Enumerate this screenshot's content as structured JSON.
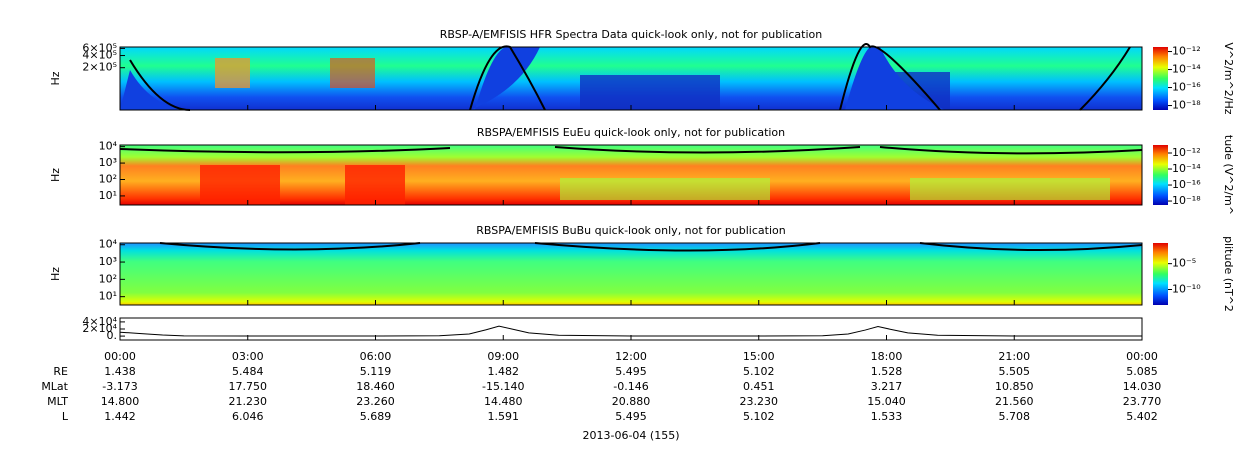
{
  "chart_data": [
    {
      "type": "spectrogram",
      "title": "RBSP-A/EMFISIS  HFR Spectra Data quick-look only, not for publication",
      "ylabel": "Hz",
      "ylog": true,
      "ylim": [
        18000,
        650000
      ],
      "yticks": [
        {
          "value": 200000,
          "label": "2×10⁵"
        },
        {
          "value": 400000,
          "label": "4×10⁵"
        },
        {
          "value": 600000,
          "label": "6×10⁵"
        }
      ],
      "colorbar_label": "V^2/m^2/Hz",
      "clim": [
        3.2e-19,
        3.2e-12
      ],
      "cticks": [
        {
          "value": 1e-18,
          "label": "10⁻¹⁸"
        },
        {
          "value": 1e-16,
          "label": "10⁻¹⁶"
        },
        {
          "value": 1e-14,
          "label": "10⁻¹⁴"
        },
        {
          "value": 1e-12,
          "label": "10⁻¹²"
        }
      ]
    },
    {
      "type": "spectrogram",
      "title": "RBSPA/EMFISIS  EuEu quick-look only, not for publication",
      "ylabel": "Hz",
      "ylog": true,
      "ylim": [
        2.8,
        12600
      ],
      "yticks": [
        {
          "value": 10,
          "label": "10¹"
        },
        {
          "value": 100,
          "label": "10²"
        },
        {
          "value": 1000,
          "label": "10³"
        },
        {
          "value": 10000,
          "label": "10⁴"
        }
      ],
      "colorbar_label": "tude (V^2/m^",
      "clim": [
        3.2e-19,
        1e-11
      ],
      "cticks": [
        {
          "value": 1e-18,
          "label": "10⁻¹⁸"
        },
        {
          "value": 1e-16,
          "label": "10⁻¹⁶"
        },
        {
          "value": 1e-14,
          "label": "10⁻¹⁴"
        },
        {
          "value": 1e-12,
          "label": "10⁻¹²"
        }
      ]
    },
    {
      "type": "spectrogram",
      "title": "RBSPA/EMFISIS  BuBu quick-look only, not for publication",
      "ylabel": "Hz",
      "ylog": true,
      "ylim": [
        3.3,
        12600
      ],
      "yticks": [
        {
          "value": 10,
          "label": "10¹"
        },
        {
          "value": 100,
          "label": "10²"
        },
        {
          "value": 1000,
          "label": "10³"
        },
        {
          "value": 10000,
          "label": "10⁴"
        }
      ],
      "colorbar_label": "plitude (nT^2",
      "clim": [
        1e-13,
        0.1
      ],
      "cticks": [
        {
          "value": 1e-10,
          "label": "10⁻¹⁰"
        },
        {
          "value": 1e-05,
          "label": "10⁻⁵"
        }
      ]
    },
    {
      "type": "line",
      "ylim": [
        -11000,
        51000
      ],
      "yticks": [
        {
          "value": 0,
          "label": "0."
        },
        {
          "value": 20000,
          "label": "2×10⁴"
        },
        {
          "value": 40000,
          "label": "4×10⁴"
        }
      ],
      "xlim": [
        0,
        24
      ],
      "xticks": [
        {
          "value": 0,
          "label": "00:00"
        },
        {
          "value": 3,
          "label": "03:00"
        },
        {
          "value": 6,
          "label": "06:00"
        },
        {
          "value": 9,
          "label": "09:00"
        },
        {
          "value": 12,
          "label": "12:00"
        },
        {
          "value": 15,
          "label": "15:00"
        },
        {
          "value": 18,
          "label": "18:00"
        },
        {
          "value": 21,
          "label": "21:00"
        },
        {
          "value": 24,
          "label": "00:00"
        }
      ],
      "x": [
        0,
        0.5,
        1,
        1.5,
        3,
        6,
        7.5,
        8.2,
        8.6,
        8.9,
        9.2,
        9.6,
        10.3,
        12,
        15,
        16.5,
        17.1,
        17.5,
        17.8,
        18.1,
        18.5,
        19.2,
        21,
        24
      ],
      "values": [
        11000,
        7000,
        3000,
        800,
        200,
        200,
        1000,
        6000,
        18000,
        28000,
        20000,
        9000,
        2500,
        200,
        200,
        1000,
        6000,
        17000,
        27000,
        19000,
        9000,
        2500,
        200,
        200
      ],
      "color": "#000000",
      "xlabel": "2013-06-04 (155)"
    }
  ],
  "ephemeris": {
    "rows": [
      {
        "label": "RE",
        "values": [
          "1.438",
          "5.484",
          "5.119",
          "1.482",
          "5.495",
          "5.102",
          "1.528",
          "5.505",
          "5.085"
        ]
      },
      {
        "label": "MLat",
        "values": [
          "-3.173",
          "17.750",
          "18.460",
          "-15.140",
          "-0.146",
          "0.451",
          "3.217",
          "10.850",
          "14.030"
        ]
      },
      {
        "label": "MLT",
        "values": [
          "14.800",
          "21.230",
          "23.260",
          "14.480",
          "20.880",
          "23.230",
          "15.040",
          "21.560",
          "23.770"
        ]
      },
      {
        "label": "L",
        "values": [
          "1.442",
          "6.046",
          "5.689",
          "1.591",
          "5.495",
          "5.102",
          "1.533",
          "5.708",
          "5.402"
        ]
      }
    ]
  }
}
